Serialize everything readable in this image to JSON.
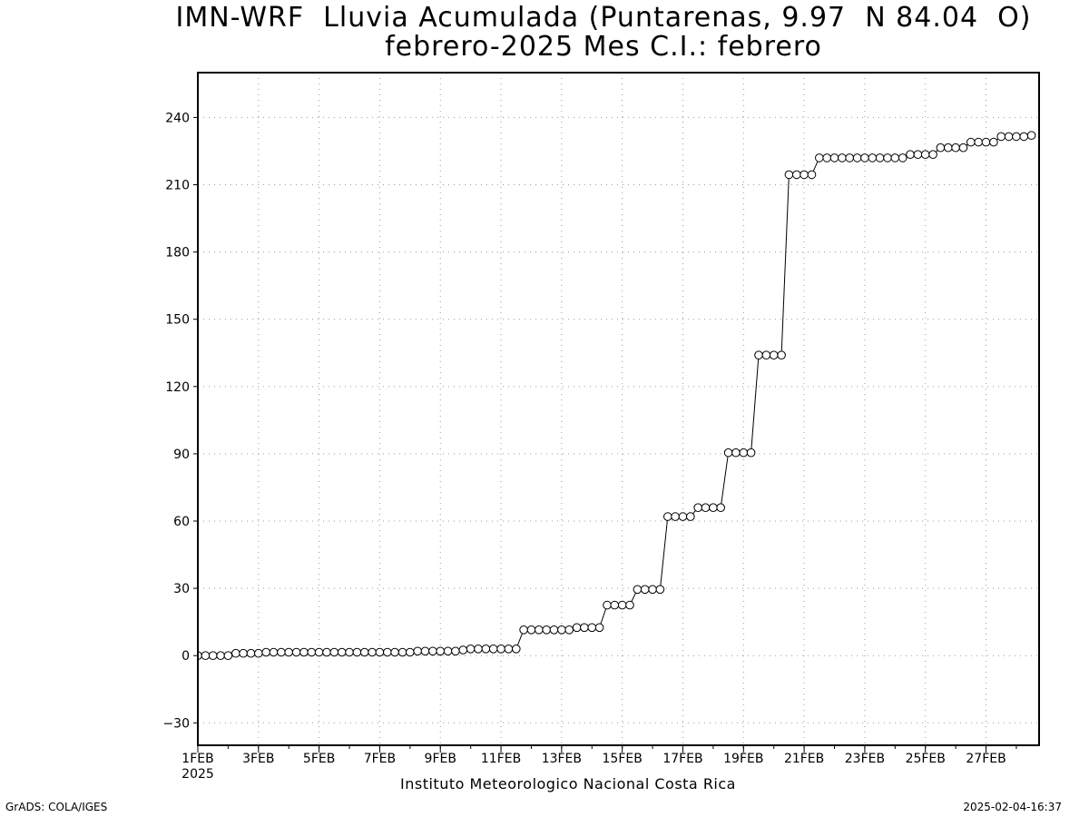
{
  "chart_data": {
    "type": "line",
    "title": "IMN-WRF  Lluvia Acumulada (Puntarenas, 9.97  N 84.04  O)",
    "subtitle": "febrero-2025 Mes C.I.: febrero",
    "xlabel": "Instituto Meteorologico Nacional Costa Rica",
    "ylabel": "",
    "x_unit": "days since 1 Feb 2025 00Z (6-hourly)",
    "xlim": [
      0,
      27.75
    ],
    "ylim": [
      -40,
      260
    ],
    "grid": true,
    "marker": "circle-open",
    "y_ticks": [
      -30,
      0,
      30,
      60,
      90,
      120,
      150,
      180,
      210,
      240
    ],
    "x_ticks": [
      {
        "x": 0,
        "label": "1FEB",
        "sublabel": "2025"
      },
      {
        "x": 2,
        "label": "3FEB"
      },
      {
        "x": 4,
        "label": "5FEB"
      },
      {
        "x": 6,
        "label": "7FEB"
      },
      {
        "x": 8,
        "label": "9FEB"
      },
      {
        "x": 10,
        "label": "11FEB"
      },
      {
        "x": 12,
        "label": "13FEB"
      },
      {
        "x": 14,
        "label": "15FEB"
      },
      {
        "x": 16,
        "label": "17FEB"
      },
      {
        "x": 18,
        "label": "19FEB"
      },
      {
        "x": 20,
        "label": "21FEB"
      },
      {
        "x": 22,
        "label": "23FEB"
      },
      {
        "x": 24,
        "label": "25FEB"
      },
      {
        "x": 26,
        "label": "27FEB"
      }
    ],
    "series": [
      {
        "step": 0.25,
        "values": [
          0,
          0,
          0,
          0,
          0,
          1,
          1,
          1,
          1,
          1.5,
          1.5,
          1.5,
          1.5,
          1.5,
          1.5,
          1.5,
          1.5,
          1.5,
          1.5,
          1.5,
          1.5,
          1.5,
          1.5,
          1.5,
          1.5,
          1.5,
          1.5,
          1.5,
          1.5,
          2,
          2,
          2,
          2,
          2,
          2,
          2.5,
          3,
          3,
          3,
          3,
          3,
          3,
          3,
          11.5,
          11.5,
          11.5,
          11.5,
          11.5,
          11.5,
          11.5,
          12.5,
          12.5,
          12.5,
          12.5,
          22.5,
          22.5,
          22.5,
          22.5,
          29.5,
          29.5,
          29.5,
          29.5,
          62,
          62,
          62,
          62,
          66,
          66,
          66,
          66,
          90.5,
          90.5,
          90.5,
          90.5,
          134,
          134,
          134,
          134,
          214.5,
          214.5,
          214.5,
          214.5,
          222,
          222,
          222,
          222,
          222,
          222,
          222,
          222,
          222,
          222,
          222,
          222,
          223.5,
          223.5,
          223.5,
          223.5,
          226.5,
          226.5,
          226.5,
          226.5,
          229,
          229,
          229,
          229,
          231.5,
          231.5,
          231.5,
          231.5,
          232
        ]
      }
    ]
  },
  "footer": {
    "credit": "GrADS: COLA/IGES",
    "timestamp": "2025-02-04-16:37"
  }
}
